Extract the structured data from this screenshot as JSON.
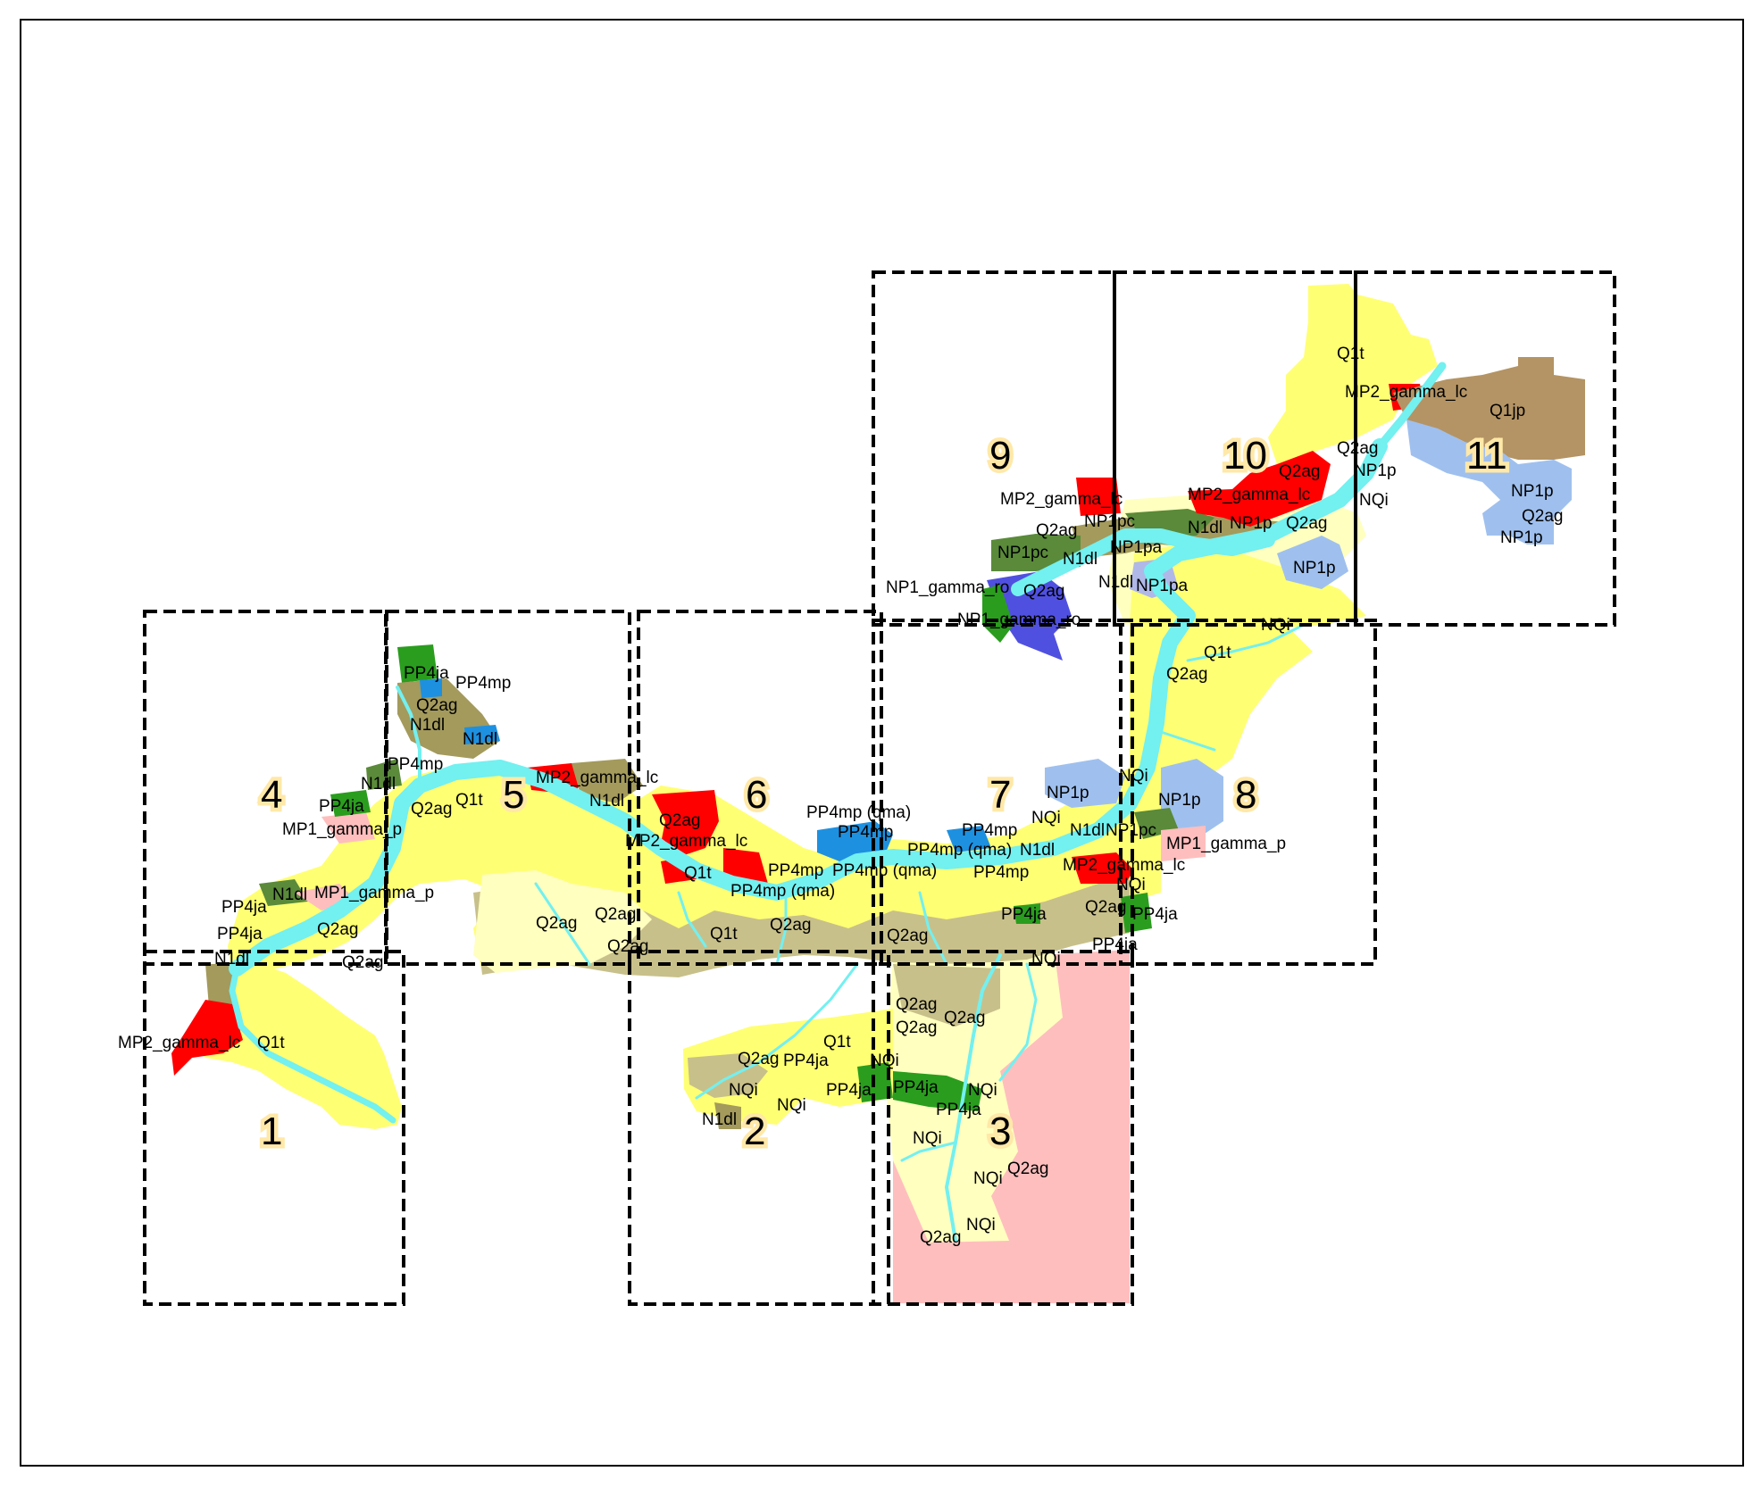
{
  "colors": {
    "Q1t": "#ffff73",
    "Q2ag": "#c8c08a",
    "Q2ag_light": "#ffffc0",
    "N1dl": "#a39a5c",
    "NP1p": "#9fc0ee",
    "NP1pa": "#b0b8e8",
    "NP1pc": "#5a8a3a",
    "NQi": "#ffffb4",
    "MP2_gamma_lc": "#ff0000",
    "MP1_gamma_p": "#ffbebe",
    "PP4ja": "#2a9d1e",
    "PP4mp": "#1e90e0",
    "Q1jp": "#b49464",
    "NP1_gamma_ro": "#5050e0",
    "river": "#73f0f0",
    "sheet_outline": "#000000",
    "map_frame": "#000000"
  },
  "sheets": [
    {
      "number": "1"
    },
    {
      "number": "2"
    },
    {
      "number": "3"
    },
    {
      "number": "4"
    },
    {
      "number": "5"
    },
    {
      "number": "6"
    },
    {
      "number": "7"
    },
    {
      "number": "8"
    },
    {
      "number": "9"
    },
    {
      "number": "10"
    },
    {
      "number": "11"
    }
  ],
  "labels": [
    "Q1t",
    "MP2_gamma_lc",
    "Q1jp",
    "Q2ag",
    "NP1p",
    "NQi",
    "NP1p",
    "Q2ag",
    "NP1p",
    "MP2_gamma_lc",
    "Q2ag",
    "MP2_gamma_lc",
    "Q2ag",
    "NP1pc",
    "N1dl",
    "NP1p",
    "Q2ag",
    "NP1p",
    "NP1pc",
    "N1dl",
    "NP1pa",
    "NP1_gamma_ro",
    "Q2ag",
    "N1dl",
    "NP1pa",
    "NP1_gamma_ro",
    "NQi",
    "Q1t",
    "Q2ag",
    "PP4ja",
    "PP4mp",
    "Q2ag",
    "N1dl",
    "N1dl",
    "PP4mp",
    "N1dl",
    "MP2_gamma_lc",
    "Q2ag",
    "Q1t",
    "N1dl",
    "PP4ja",
    "MP1_gamma_p",
    "PP4ja",
    "N1dl",
    "MP1_gamma_p",
    "PP4ja",
    "Q2ag",
    "N1dl",
    "Q2ag",
    "MP2_gamma_lc",
    "Q1t",
    "Q2ag",
    "MP2_gamma_lc",
    "Q1t",
    "PP4mp (qma)",
    "PP4mp",
    "PP4mp",
    "PP4mp (qma)",
    "PP4mp (qma)",
    "Q2ag",
    "Q2ag",
    "Q2ag",
    "Q1t",
    "Q2ag",
    "NQi",
    "NP1p",
    "NQi",
    "PP4mp",
    "PP4mp (qma)",
    "N1dl",
    "PP4mp",
    "N1dl",
    "NP1pc",
    "NP1p",
    "MP1_gamma_p",
    "MP2_gamma_lc",
    "NQi",
    "Q2ag",
    "PP4ja",
    "PP4ja",
    "Q2ag",
    "PP4ja",
    "NQi",
    "Q2ag",
    "Q2ag",
    "Q2ag",
    "Q1t",
    "Q2ag",
    "PP4ja",
    "NQi",
    "NQi",
    "NQi",
    "N1dl",
    "PP4ja",
    "PP4ja",
    "NQi",
    "PP4ja",
    "NQi",
    "Q2ag",
    "NQi",
    "Q2ag",
    "NQi"
  ]
}
